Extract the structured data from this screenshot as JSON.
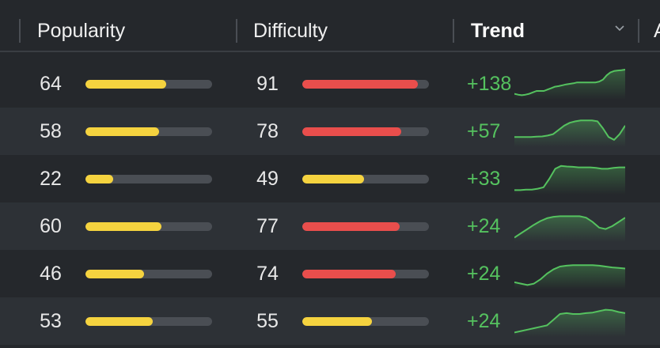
{
  "header": {
    "columns": [
      {
        "label": "Popularity"
      },
      {
        "label": "Difficulty"
      },
      {
        "label": "Trend"
      },
      {
        "label": "A"
      }
    ],
    "sort_icon": "chevron-down-icon"
  },
  "colors": {
    "popularity_bar": "#f5d33f",
    "difficulty_high": "#e94e4c",
    "difficulty_mid": "#f5d33f",
    "trend_positive": "#55c25f",
    "track": "#4a4e54"
  },
  "rows": [
    {
      "popularity": "64",
      "difficulty": "91",
      "difficulty_level": "high",
      "trend": "+138",
      "spark": [
        0.15,
        0.12,
        0.1,
        0.12,
        0.15,
        0.2,
        0.25,
        0.25,
        0.25,
        0.3,
        0.35,
        0.4,
        0.42,
        0.45,
        0.48,
        0.5,
        0.52,
        0.55,
        0.55,
        0.55,
        0.55,
        0.55,
        0.55,
        0.58,
        0.65,
        0.8,
        0.9,
        0.95,
        0.97,
        0.98,
        1.0
      ]
    },
    {
      "popularity": "58",
      "difficulty": "78",
      "difficulty_level": "high",
      "trend": "+57",
      "spark": [
        0.3,
        0.3,
        0.3,
        0.3,
        0.31,
        0.32,
        0.35,
        0.4,
        0.55,
        0.7,
        0.8,
        0.85,
        0.88,
        0.88,
        0.88,
        0.85,
        0.6,
        0.3,
        0.2,
        0.4,
        0.7
      ]
    },
    {
      "popularity": "22",
      "difficulty": "49",
      "difficulty_level": "mid",
      "trend": "+33",
      "spark": [
        0.1,
        0.1,
        0.12,
        0.12,
        0.15,
        0.2,
        0.5,
        0.85,
        0.95,
        0.93,
        0.92,
        0.9,
        0.9,
        0.9,
        0.88,
        0.85,
        0.85,
        0.88,
        0.9,
        0.9
      ]
    },
    {
      "popularity": "60",
      "difficulty": "77",
      "difficulty_level": "high",
      "trend": "+24",
      "spark": [
        0.1,
        0.25,
        0.4,
        0.55,
        0.68,
        0.78,
        0.83,
        0.85,
        0.85,
        0.85,
        0.85,
        0.8,
        0.65,
        0.45,
        0.4,
        0.5,
        0.65,
        0.8
      ]
    },
    {
      "popularity": "46",
      "difficulty": "74",
      "difficulty_level": "high",
      "trend": "+24",
      "spark": [
        0.2,
        0.15,
        0.1,
        0.15,
        0.3,
        0.5,
        0.65,
        0.75,
        0.78,
        0.8,
        0.8,
        0.8,
        0.8,
        0.78,
        0.75,
        0.72,
        0.7,
        0.68
      ]
    },
    {
      "popularity": "53",
      "difficulty": "55",
      "difficulty_level": "mid",
      "trend": "+24",
      "spark": [
        0.1,
        0.15,
        0.2,
        0.25,
        0.3,
        0.35,
        0.55,
        0.75,
        0.78,
        0.75,
        0.75,
        0.78,
        0.8,
        0.85,
        0.9,
        0.88,
        0.82,
        0.78
      ]
    }
  ]
}
